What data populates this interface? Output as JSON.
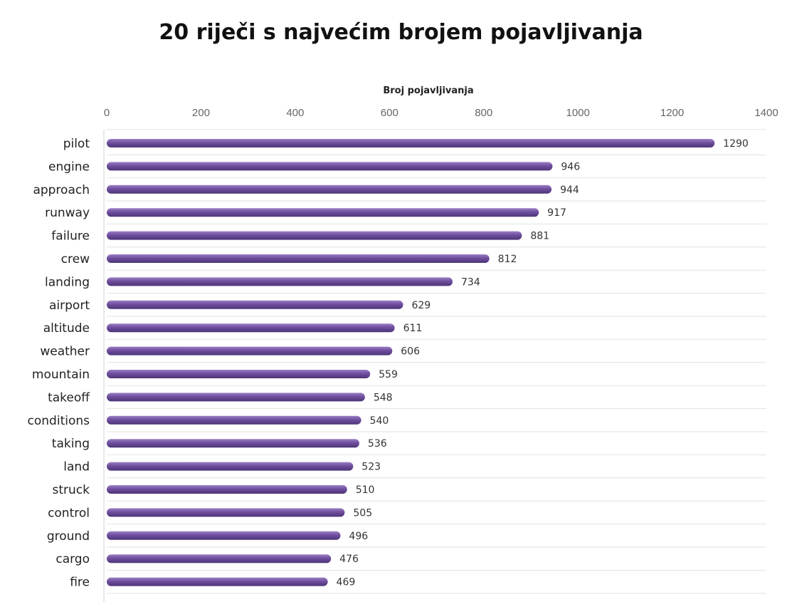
{
  "chart_data": {
    "type": "bar",
    "orientation": "horizontal",
    "title": "20 riječi s najvećim brojem pojavljivanja",
    "xlabel": "Broj pojavljivanja",
    "ylabel": "",
    "xlim": [
      0,
      1400
    ],
    "ticks": [
      0,
      200,
      400,
      600,
      800,
      1000,
      1200,
      1400
    ],
    "grid": true,
    "axis_position": "top",
    "bar_color": "#6f4e9e",
    "categories": [
      "pilot",
      "engine",
      "approach",
      "runway",
      "failure",
      "crew",
      "landing",
      "airport",
      "altitude",
      "weather",
      "mountain",
      "takeoff",
      "conditions",
      "taking",
      "land",
      "struck",
      "control",
      "ground",
      "cargo",
      "fire"
    ],
    "values": [
      1290,
      946,
      944,
      917,
      881,
      812,
      734,
      629,
      611,
      606,
      559,
      548,
      540,
      536,
      523,
      510,
      505,
      496,
      476,
      469
    ]
  }
}
